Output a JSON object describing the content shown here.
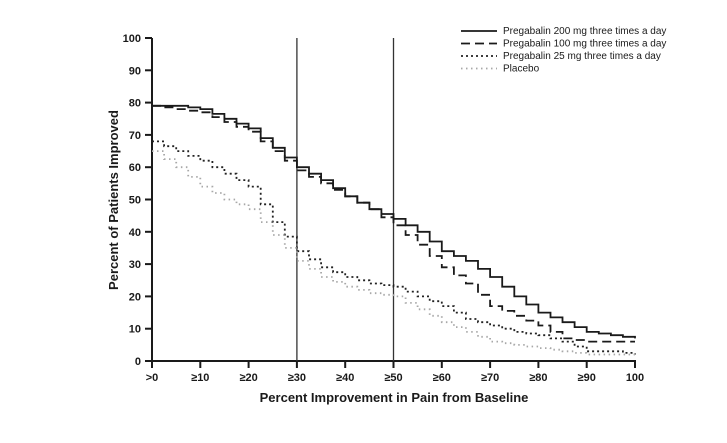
{
  "page": {
    "background": "#ffffff"
  },
  "chart_data": {
    "type": "line",
    "title": "",
    "xlabel": "Percent Improvement in Pain from Baseline",
    "ylabel": "Percent of Patients Improved",
    "xlim": [
      0,
      100
    ],
    "ylim": [
      0,
      100
    ],
    "grid": false,
    "legend_position": "top-right",
    "axis_color": "#1a1a1a",
    "reference_line_color": "#333333",
    "x_ticks": [
      0,
      10,
      20,
      30,
      40,
      50,
      60,
      70,
      80,
      90,
      100
    ],
    "x_tick_labels": [
      ">0",
      "≥10",
      "≥20",
      "≥30",
      "≥40",
      "≥50",
      "≥60",
      "≥70",
      "≥80",
      "≥90",
      "100"
    ],
    "y_ticks": [
      0,
      10,
      20,
      30,
      40,
      50,
      60,
      70,
      80,
      90,
      100
    ],
    "y_tick_labels": [
      "0",
      "10",
      "20",
      "30",
      "40",
      "50",
      "60",
      "70",
      "80",
      "90",
      "100"
    ],
    "reference_lines_x": [
      30,
      50
    ],
    "x": [
      0,
      5,
      10,
      15,
      20,
      25,
      30,
      35,
      40,
      45,
      50,
      55,
      60,
      65,
      70,
      75,
      80,
      85,
      90,
      95,
      100
    ],
    "series": [
      {
        "name": "Pregabalin 200 mg three times a day",
        "style": "solid",
        "color": "#1a1a1a",
        "values": [
          79,
          79,
          78,
          75,
          72,
          66,
          60,
          56,
          51,
          47,
          44,
          40,
          34,
          31,
          26,
          20,
          15,
          12,
          9,
          8,
          7
        ]
      },
      {
        "name": "Pregabalin 100 mg three times a day",
        "style": "dashed",
        "color": "#1a1a1a",
        "values": [
          79,
          78,
          77,
          74,
          71,
          65,
          59,
          55,
          51,
          47,
          42,
          36,
          29,
          24,
          17,
          14,
          11,
          7,
          6,
          6,
          6
        ]
      },
      {
        "name": "Pregabalin 25 mg three times a day",
        "style": "dotted",
        "color": "#222222",
        "values": [
          68,
          65,
          62,
          58,
          54,
          43,
          34,
          29,
          26,
          24,
          23,
          20,
          17,
          13,
          11,
          9,
          8,
          6,
          3,
          3,
          2
        ]
      },
      {
        "name": "Placebo",
        "style": "dotted-light",
        "color": "#a8a8a8",
        "values": [
          65,
          60,
          54,
          50,
          47,
          39,
          31,
          26,
          23,
          21,
          20,
          16,
          12,
          9,
          6,
          5,
          4,
          3,
          2,
          2,
          2
        ]
      }
    ]
  }
}
